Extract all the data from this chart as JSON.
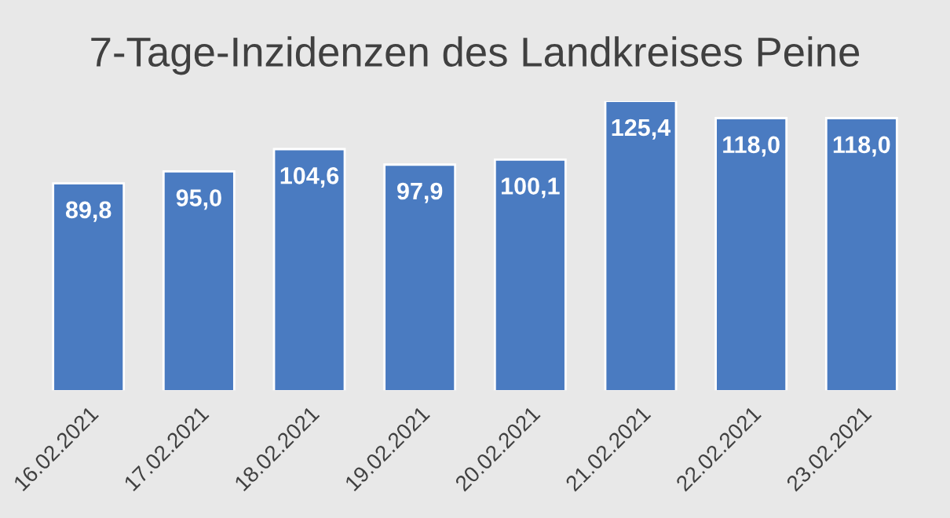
{
  "chart_data": {
    "type": "bar",
    "title": "7-Tage-Inzidenzen des Landkreises Peine",
    "categories": [
      "16.02.2021",
      "17.02.2021",
      "18.02.2021",
      "19.02.2021",
      "20.02.2021",
      "21.02.2021",
      "22.02.2021",
      "23.02.2021"
    ],
    "values": [
      89.8,
      95.0,
      104.6,
      97.9,
      100.1,
      125.4,
      118.0,
      118.0
    ],
    "value_labels": [
      "89,8",
      "95,0",
      "104,6",
      "97,9",
      "100,1",
      "125,4",
      "118,0",
      "118,0"
    ],
    "color": "#4a7bc1",
    "tick_labels": "x",
    "grid": false,
    "legend": false
  }
}
